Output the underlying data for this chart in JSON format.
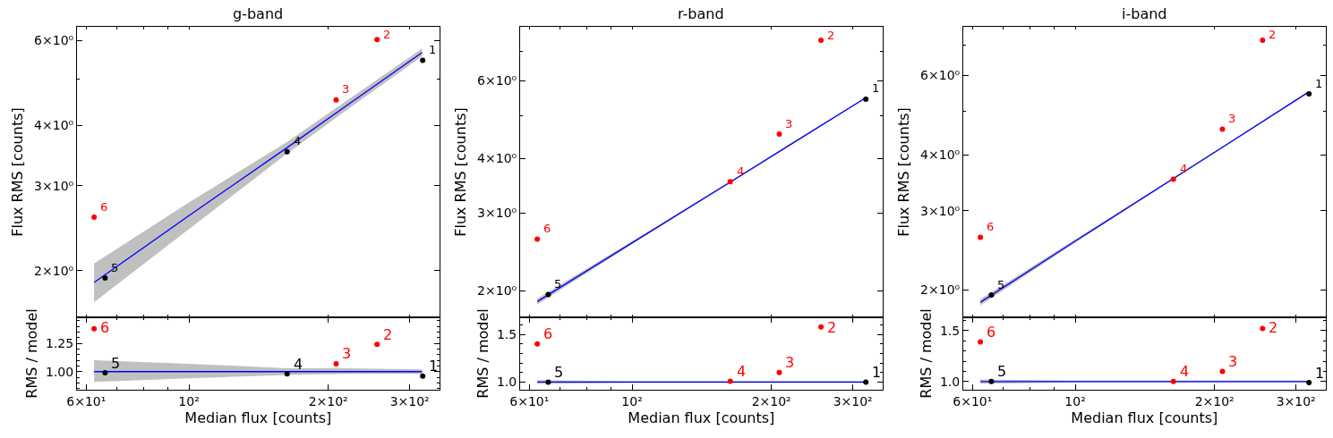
{
  "chart_data": [
    {
      "type": "scatter",
      "title": "g-band",
      "ylabel": "Flux RMS [counts]",
      "log": "xy",
      "tick_labels": "y",
      "xlim": [
        57.3,
        347.5
      ],
      "xticks": [
        {
          "value": 60,
          "label": null
        },
        {
          "value": 70,
          "label": null
        },
        {
          "value": 80,
          "label": null
        },
        {
          "value": 90,
          "label": null
        },
        {
          "value": 100,
          "label": null
        },
        {
          "value": 200,
          "label": null
        },
        {
          "value": 300,
          "label": null
        }
      ],
      "ylim": [
        1.6,
        6.41
      ],
      "yticks": [
        {
          "value": 2,
          "label": "2×10⁰"
        },
        {
          "value": 3,
          "label": "3×10⁰"
        },
        {
          "value": 4,
          "label": "4×10⁰"
        },
        {
          "value": 5,
          "label": null
        },
        {
          "value": 6,
          "label": "6×10⁰"
        }
      ],
      "series": [
        {
          "type": "line",
          "color": "#0000ff",
          "x": [
            62.4,
            100,
            163,
            220,
            319
          ],
          "values": [
            1.89,
            2.6,
            3.6,
            4.41,
            5.67
          ],
          "lower": [
            1.72,
            2.44,
            3.5,
            4.32,
            5.57
          ],
          "upper": [
            2.07,
            2.77,
            3.7,
            4.52,
            5.78
          ]
        },
        {
          "color": "#000000",
          "marker": "circle",
          "x": [
            320,
            163,
            65.9
          ],
          "values": [
            5.46,
            3.53,
            1.93
          ]
        },
        {
          "color": "#ff0000",
          "marker": "circle",
          "x": [
            255,
            208,
            62.4
          ],
          "values": [
            6.03,
            4.52,
            2.58
          ]
        }
      ],
      "annotations": [
        {
          "text": "1",
          "x": 320,
          "y": 5.46
        },
        {
          "text": "2",
          "x": 255,
          "y": 6.03
        },
        {
          "text": "3",
          "x": 208,
          "y": 4.52
        },
        {
          "text": "4",
          "x": 163,
          "y": 3.53
        },
        {
          "text": "5",
          "x": 65.9,
          "y": 1.93
        },
        {
          "text": "6",
          "x": 62.4,
          "y": 2.58
        }
      ]
    },
    {
      "type": "scatter",
      "title": "r-band",
      "ylabel": "Flux RMS [counts]",
      "log": "xy",
      "tick_labels": "y",
      "xlim": [
        57.3,
        347.5
      ],
      "xticks": [
        {
          "value": 60,
          "label": null
        },
        {
          "value": 70,
          "label": null
        },
        {
          "value": 80,
          "label": null
        },
        {
          "value": 90,
          "label": null
        },
        {
          "value": 100,
          "label": null
        },
        {
          "value": 200,
          "label": null
        },
        {
          "value": 300,
          "label": null
        }
      ],
      "ylim": [
        1.74,
        7.96
      ],
      "yticks": [
        {
          "value": 2,
          "label": "2×10⁰"
        },
        {
          "value": 3,
          "label": "3×10⁰"
        },
        {
          "value": 4,
          "label": "4×10⁰"
        },
        {
          "value": 5,
          "label": null
        },
        {
          "value": 6,
          "label": "6×10⁰"
        },
        {
          "value": 7,
          "label": null
        }
      ],
      "series": [
        {
          "type": "line",
          "color": "#0000ff",
          "x": [
            62.4,
            100,
            163,
            220,
            319
          ],
          "values": [
            1.89,
            2.57,
            3.53,
            4.3,
            5.48
          ],
          "lower": [
            1.86,
            2.55,
            3.51,
            4.28,
            5.46
          ],
          "upper": [
            1.92,
            2.59,
            3.55,
            4.32,
            5.5
          ]
        },
        {
          "color": "#000000",
          "marker": "circle",
          "x": [
            320,
            65.9
          ],
          "values": [
            5.45,
            1.96
          ]
        },
        {
          "color": "#ff0000",
          "marker": "circle",
          "x": [
            256,
            208,
            163,
            62.4
          ],
          "values": [
            7.42,
            4.54,
            3.54,
            2.62
          ]
        }
      ],
      "annotations": [
        {
          "text": "1",
          "x": 320,
          "y": 5.45
        },
        {
          "text": "2",
          "x": 256,
          "y": 7.42
        },
        {
          "text": "3",
          "x": 208,
          "y": 4.54
        },
        {
          "text": "4",
          "x": 163,
          "y": 3.54
        },
        {
          "text": "5",
          "x": 65.9,
          "y": 1.96
        },
        {
          "text": "6",
          "x": 62.4,
          "y": 2.62
        }
      ]
    },
    {
      "type": "scatter",
      "title": "i-band",
      "ylabel": "Flux RMS [counts]",
      "log": "xy",
      "tick_labels": "y",
      "xlim": [
        57.3,
        347.5
      ],
      "xticks": [
        {
          "value": 60,
          "label": null
        },
        {
          "value": 70,
          "label": null
        },
        {
          "value": 80,
          "label": null
        },
        {
          "value": 90,
          "label": null
        },
        {
          "value": 100,
          "label": null
        },
        {
          "value": 200,
          "label": null
        },
        {
          "value": 300,
          "label": null
        }
      ],
      "ylim": [
        1.74,
        7.7
      ],
      "yticks": [
        {
          "value": 2,
          "label": "2×10⁰"
        },
        {
          "value": 3,
          "label": "3×10⁰"
        },
        {
          "value": 4,
          "label": "4×10⁰"
        },
        {
          "value": 5,
          "label": null
        },
        {
          "value": 6,
          "label": "6×10⁰"
        },
        {
          "value": 7,
          "label": null
        }
      ],
      "series": [
        {
          "type": "line",
          "color": "#0000ff",
          "x": [
            62.4,
            100,
            163,
            220,
            319
          ],
          "values": [
            1.88,
            2.57,
            3.54,
            4.31,
            5.51
          ],
          "lower": [
            1.85,
            2.55,
            3.52,
            4.29,
            5.49
          ],
          "upper": [
            1.91,
            2.59,
            3.56,
            4.33,
            5.53
          ]
        },
        {
          "color": "#000000",
          "marker": "circle",
          "x": [
            320,
            65.9
          ],
          "values": [
            5.46,
            1.95
          ]
        },
        {
          "color": "#ff0000",
          "marker": "circle",
          "x": [
            254,
            208,
            163,
            62.4
          ],
          "values": [
            7.19,
            4.56,
            3.53,
            2.62
          ]
        }
      ],
      "annotations": [
        {
          "text": "1",
          "x": 320,
          "y": 5.46
        },
        {
          "text": "2",
          "x": 254,
          "y": 7.19
        },
        {
          "text": "3",
          "x": 208,
          "y": 4.56
        },
        {
          "text": "4",
          "x": 163,
          "y": 3.53
        },
        {
          "text": "5",
          "x": 65.9,
          "y": 1.95
        },
        {
          "text": "6",
          "x": 62.4,
          "y": 2.62
        }
      ]
    },
    {
      "type": "scatter",
      "xlabel": "Median flux [counts]",
      "ylabel": "RMS / model",
      "log": "x",
      "xlim": [
        57.3,
        347.5
      ],
      "xticks": [
        {
          "value": 60,
          "label": "6×10¹"
        },
        {
          "value": 70,
          "label": null
        },
        {
          "value": 80,
          "label": null
        },
        {
          "value": 90,
          "label": null
        },
        {
          "value": 100,
          "label": "10²"
        },
        {
          "value": 200,
          "label": "2×10²"
        },
        {
          "value": 300,
          "label": "3×10²"
        }
      ],
      "ylim": [
        0.84,
        1.48
      ],
      "yticks": [
        {
          "value": 0.85,
          "label": null
        },
        {
          "value": 0.9,
          "label": null
        },
        {
          "value": 0.95,
          "label": null
        },
        {
          "value": 1,
          "label": "1.00"
        },
        {
          "value": 1.05,
          "label": null
        },
        {
          "value": 1.1,
          "label": null
        },
        {
          "value": 1.15,
          "label": null
        },
        {
          "value": 1.2,
          "label": null
        },
        {
          "value": 1.25,
          "label": "1.25"
        },
        {
          "value": 1.3,
          "label": null
        },
        {
          "value": 1.35,
          "label": null
        },
        {
          "value": 1.4,
          "label": null
        },
        {
          "value": 1.45,
          "label": null
        }
      ],
      "series": [
        {
          "type": "line",
          "color": "#0000ff",
          "x": [
            62.4,
            100,
            163,
            220,
            319
          ],
          "values": [
            1,
            1,
            1,
            1,
            1
          ],
          "lower": [
            0.91,
            0.94,
            0.97,
            0.98,
            0.98
          ],
          "upper": [
            1.1,
            1.07,
            1.03,
            1.03,
            1.02
          ]
        },
        {
          "color": "#000000",
          "marker": "circle",
          "x": [
            320,
            163,
            65.9
          ],
          "values": [
            0.96,
            0.98,
            0.99
          ]
        },
        {
          "color": "#ff0000",
          "marker": "circle",
          "x": [
            255,
            208,
            62.4
          ],
          "values": [
            1.24,
            1.07,
            1.38
          ]
        }
      ],
      "annotations": [
        {
          "text": "1",
          "x": 320,
          "y": 0.96
        },
        {
          "text": "2",
          "x": 255,
          "y": 1.24
        },
        {
          "text": "3",
          "x": 208,
          "y": 1.07
        },
        {
          "text": "4",
          "x": 163,
          "y": 0.98
        },
        {
          "text": "5",
          "x": 65.9,
          "y": 0.99
        },
        {
          "text": "6",
          "x": 62.4,
          "y": 1.38
        }
      ]
    },
    {
      "type": "scatter",
      "xlabel": "Median flux [counts]",
      "ylabel": "RMS / model",
      "log": "x",
      "xlim": [
        57.3,
        347.5
      ],
      "xticks": [
        {
          "value": 60,
          "label": "6×10¹"
        },
        {
          "value": 70,
          "label": null
        },
        {
          "value": 80,
          "label": null
        },
        {
          "value": 90,
          "label": null
        },
        {
          "value": 100,
          "label": "10²"
        },
        {
          "value": 200,
          "label": "2×10²"
        },
        {
          "value": 300,
          "label": "3×10²"
        }
      ],
      "ylim": [
        0.92,
        1.68
      ],
      "yticks": [
        {
          "value": 1,
          "label": "1.0"
        },
        {
          "value": 1.1,
          "label": null
        },
        {
          "value": 1.2,
          "label": null
        },
        {
          "value": 1.3,
          "label": null
        },
        {
          "value": 1.4,
          "label": null
        },
        {
          "value": 1.5,
          "label": "1.5"
        },
        {
          "value": 1.6,
          "label": null
        }
      ],
      "series": [
        {
          "type": "line",
          "color": "#0000ff",
          "x": [
            62.4,
            100,
            163,
            220,
            319
          ],
          "values": [
            1,
            1,
            1,
            1,
            1
          ],
          "lower": [
            0.98,
            0.99,
            0.99,
            0.99,
            0.99
          ],
          "upper": [
            1.02,
            1.01,
            1.01,
            1.01,
            1.01
          ]
        },
        {
          "color": "#000000",
          "marker": "circle",
          "x": [
            320,
            65.9
          ],
          "values": [
            1.0,
            1.0
          ]
        },
        {
          "color": "#ff0000",
          "marker": "circle",
          "x": [
            256,
            208,
            163,
            62.4
          ],
          "values": [
            1.58,
            1.1,
            1.01,
            1.4
          ]
        }
      ],
      "annotations": [
        {
          "text": "1",
          "x": 320,
          "y": 1.0
        },
        {
          "text": "2",
          "x": 256,
          "y": 1.58
        },
        {
          "text": "3",
          "x": 208,
          "y": 1.1
        },
        {
          "text": "4",
          "x": 163,
          "y": 1.01
        },
        {
          "text": "5",
          "x": 65.9,
          "y": 1.0
        },
        {
          "text": "6",
          "x": 62.4,
          "y": 1.4
        }
      ]
    },
    {
      "type": "scatter",
      "xlabel": "Median flux [counts]",
      "ylabel": "RMS / model",
      "log": "x",
      "xlim": [
        57.3,
        347.5
      ],
      "xticks": [
        {
          "value": 60,
          "label": "6×10¹"
        },
        {
          "value": 70,
          "label": null
        },
        {
          "value": 80,
          "label": null
        },
        {
          "value": 90,
          "label": null
        },
        {
          "value": 100,
          "label": "10²"
        },
        {
          "value": 200,
          "label": "2×10²"
        },
        {
          "value": 300,
          "label": "3×10²"
        }
      ],
      "ylim": [
        0.92,
        1.63
      ],
      "yticks": [
        {
          "value": 1,
          "label": "1.0"
        },
        {
          "value": 1.1,
          "label": null
        },
        {
          "value": 1.2,
          "label": null
        },
        {
          "value": 1.3,
          "label": null
        },
        {
          "value": 1.4,
          "label": null
        },
        {
          "value": 1.5,
          "label": "1.5"
        },
        {
          "value": 1.6,
          "label": null
        }
      ],
      "series": [
        {
          "type": "line",
          "color": "#0000ff",
          "x": [
            62.4,
            100,
            163,
            220,
            319
          ],
          "values": [
            1,
            1,
            1,
            1,
            1
          ],
          "lower": [
            0.98,
            0.99,
            0.99,
            0.99,
            0.99
          ],
          "upper": [
            1.02,
            1.01,
            1.01,
            1.01,
            1.01
          ]
        },
        {
          "color": "#000000",
          "marker": "circle",
          "x": [
            320,
            65.9
          ],
          "values": [
            0.99,
            1.0
          ]
        },
        {
          "color": "#ff0000",
          "marker": "circle",
          "x": [
            254,
            208,
            163,
            62.4
          ],
          "values": [
            1.52,
            1.1,
            1.0,
            1.39
          ]
        }
      ],
      "annotations": [
        {
          "text": "1",
          "x": 320,
          "y": 0.99
        },
        {
          "text": "2",
          "x": 254,
          "y": 1.52
        },
        {
          "text": "3",
          "x": 208,
          "y": 1.1
        },
        {
          "text": "4",
          "x": 163,
          "y": 1.0
        },
        {
          "text": "5",
          "x": 65.9,
          "y": 1.0
        },
        {
          "text": "6",
          "x": 62.4,
          "y": 1.39
        }
      ]
    }
  ]
}
